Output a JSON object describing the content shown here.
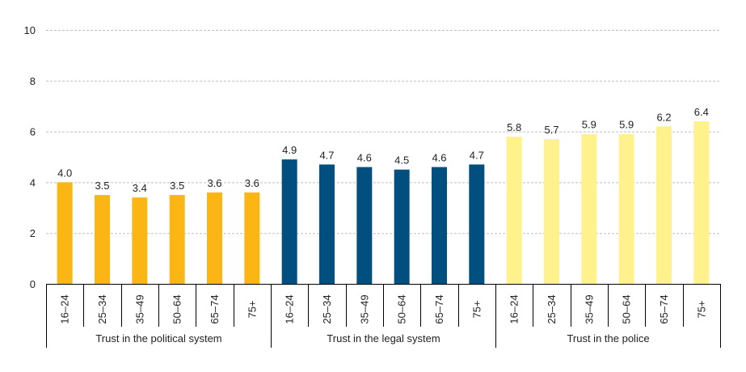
{
  "chart_data": {
    "type": "bar",
    "title": "",
    "xlabel": "",
    "ylabel": "",
    "ylim": [
      0,
      10
    ],
    "yticks": [
      0,
      2,
      4,
      6,
      8,
      10
    ],
    "grid": true,
    "legend": "none",
    "groups": [
      {
        "name": "Trust in the political system",
        "color": "#FBB615",
        "categories": [
          "16–24",
          "25–34",
          "35–49",
          "50–64",
          "65–74",
          "75+"
        ],
        "values": [
          4.0,
          3.5,
          3.4,
          3.5,
          3.6,
          3.6
        ],
        "labels": [
          "4.0",
          "3.5",
          "3.4",
          "3.5",
          "3.6",
          "3.6"
        ]
      },
      {
        "name": "Trust in the legal system",
        "color": "#004F7E",
        "categories": [
          "16–24",
          "25–34",
          "35–49",
          "50–64",
          "65–74",
          "75+"
        ],
        "values": [
          4.9,
          4.7,
          4.6,
          4.5,
          4.6,
          4.7
        ],
        "labels": [
          "4.9",
          "4.7",
          "4.6",
          "4.5",
          "4.6",
          "4.7"
        ]
      },
      {
        "name": "Trust in the police",
        "color": "#FFF18C",
        "categories": [
          "16–24",
          "25–34",
          "35–49",
          "50–64",
          "65–74",
          "75+"
        ],
        "values": [
          5.8,
          5.7,
          5.9,
          5.9,
          6.2,
          6.4
        ],
        "labels": [
          "5.8",
          "5.7",
          "5.9",
          "5.9",
          "6.2",
          "6.4"
        ]
      }
    ]
  }
}
